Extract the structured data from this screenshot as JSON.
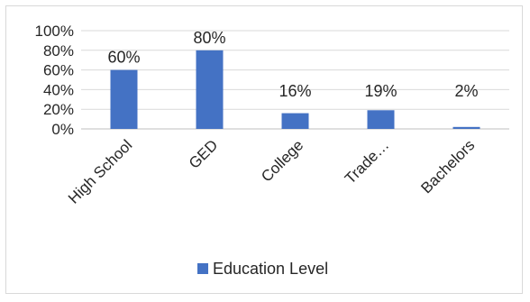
{
  "chart_data": {
    "type": "bar",
    "title": "",
    "xlabel": "",
    "ylabel": "",
    "categories": [
      "High School",
      "GED",
      "College",
      "Trade…",
      "Bachelors"
    ],
    "series": [
      {
        "name": "Education Level",
        "values": [
          60,
          80,
          16,
          19,
          2
        ],
        "color": "#4472c4"
      }
    ],
    "data_labels": [
      "60%",
      "80%",
      "16%",
      "19%",
      "2%"
    ],
    "ylim": [
      0,
      100
    ],
    "y_ticks": [
      "0%",
      "20%",
      "40%",
      "60%",
      "80%",
      "100%"
    ],
    "grid": true,
    "legend_position": "bottom"
  }
}
